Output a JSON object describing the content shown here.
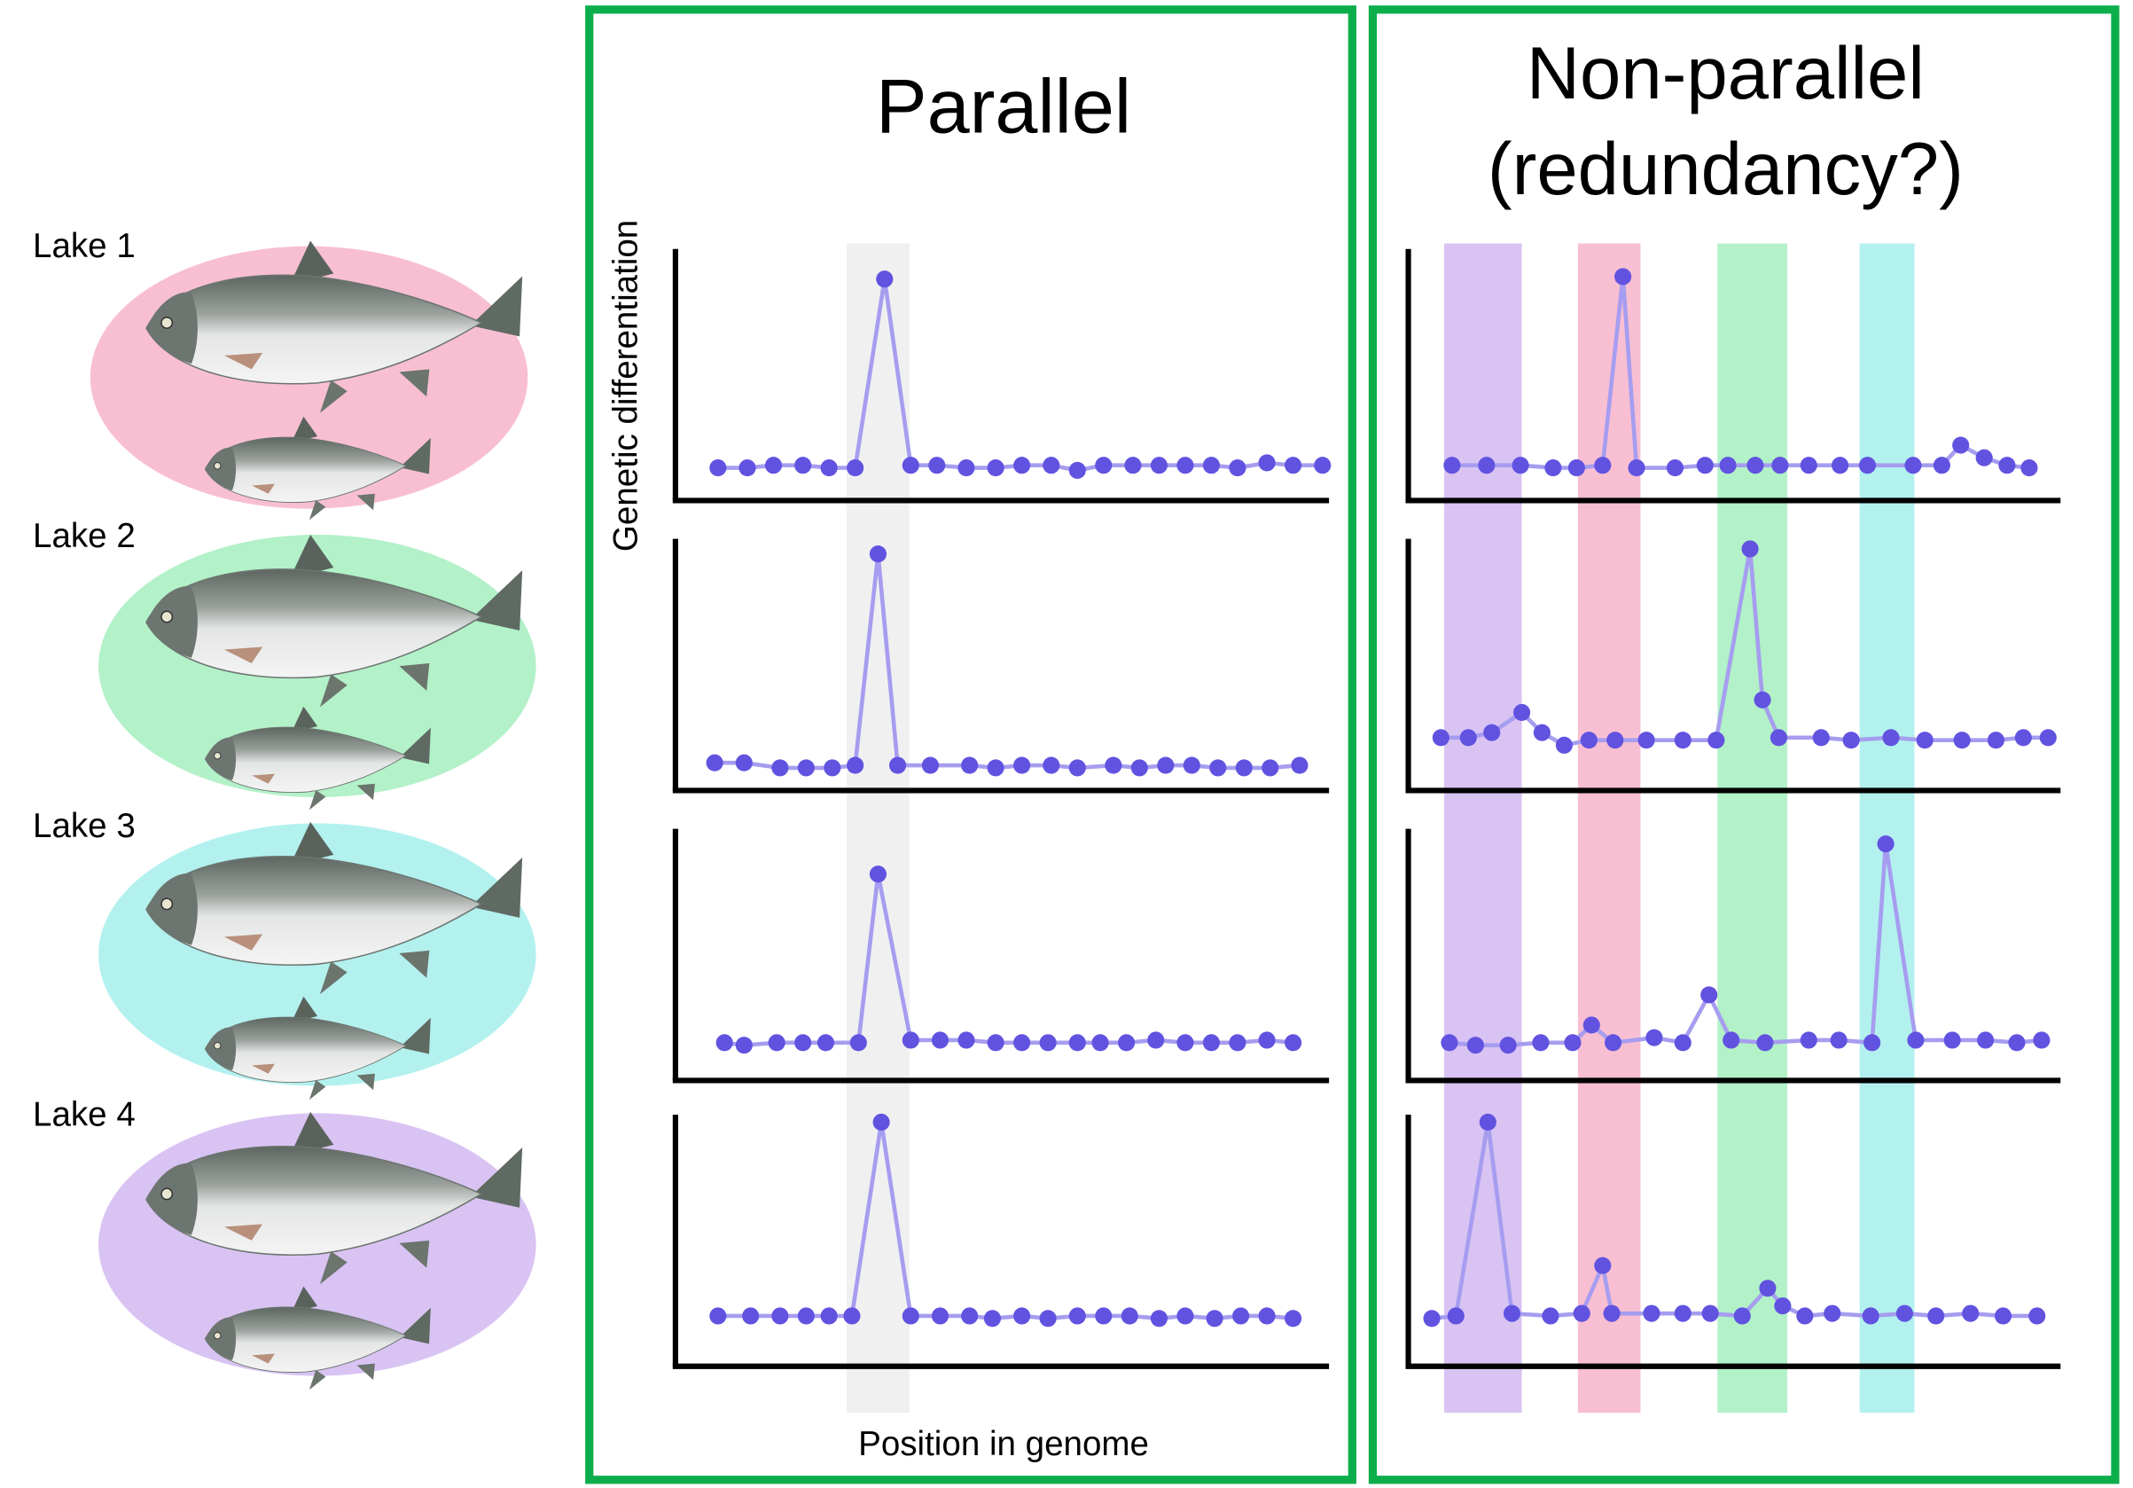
{
  "lakes": [
    {
      "label": "Lake 1",
      "color": "#f8bfd3"
    },
    {
      "label": "Lake 2",
      "color": "#b3f1c9"
    },
    {
      "label": "Lake 3",
      "color": "#b3f1ef"
    },
    {
      "label": "Lake 4",
      "color": "#d9c3f3"
    }
  ],
  "colors": {
    "frame": "#0cae4c",
    "dot": "#6153e0",
    "line": "#a69df0",
    "parallel_band": "#f0f0f0"
  },
  "chart_data": [
    {
      "type": "line",
      "title": "Parallel",
      "ylabel": "Genetic differentiation",
      "xlabel": "Position in genome",
      "xlim": [
        0,
        100
      ],
      "ylim": [
        0,
        1
      ],
      "bands": [
        {
          "range": [
            26.2,
            35.8
          ],
          "color": "#f0f0f0"
        }
      ],
      "series": [
        {
          "name": "Lake 1",
          "points": [
            [
              6.5,
              0.13
            ],
            [
              11,
              0.13
            ],
            [
              15,
              0.14
            ],
            [
              19.5,
              0.14
            ],
            [
              23.5,
              0.13
            ],
            [
              27.5,
              0.13
            ],
            [
              32,
              0.88
            ],
            [
              36,
              0.14
            ],
            [
              40,
              0.14
            ],
            [
              44.5,
              0.13
            ],
            [
              49,
              0.13
            ],
            [
              53,
              0.14
            ],
            [
              57.5,
              0.14
            ],
            [
              61.5,
              0.12
            ],
            [
              65.5,
              0.14
            ],
            [
              70,
              0.14
            ],
            [
              74,
              0.14
            ],
            [
              78,
              0.14
            ],
            [
              82,
              0.14
            ],
            [
              86,
              0.13
            ],
            [
              90.5,
              0.15
            ],
            [
              94.5,
              0.14
            ],
            [
              99,
              0.14
            ]
          ]
        },
        {
          "name": "Lake 2",
          "points": [
            [
              6,
              0.11
            ],
            [
              10.5,
              0.11
            ],
            [
              16,
              0.09
            ],
            [
              20,
              0.09
            ],
            [
              24,
              0.09
            ],
            [
              27.5,
              0.1
            ],
            [
              31,
              0.94
            ],
            [
              34,
              0.1
            ],
            [
              39,
              0.1
            ],
            [
              45,
              0.1
            ],
            [
              49,
              0.09
            ],
            [
              53,
              0.1
            ],
            [
              57.5,
              0.1
            ],
            [
              61.5,
              0.09
            ],
            [
              67,
              0.1
            ],
            [
              71,
              0.09
            ],
            [
              75,
              0.1
            ],
            [
              79,
              0.1
            ],
            [
              83,
              0.09
            ],
            [
              87,
              0.09
            ],
            [
              91,
              0.09
            ],
            [
              95.5,
              0.1
            ]
          ]
        },
        {
          "name": "Lake 3",
          "points": [
            [
              7.5,
              0.15
            ],
            [
              10.5,
              0.14
            ],
            [
              15.5,
              0.15
            ],
            [
              19.5,
              0.15
            ],
            [
              23,
              0.15
            ],
            [
              28,
              0.15
            ],
            [
              31,
              0.82
            ],
            [
              36,
              0.16
            ],
            [
              40.5,
              0.16
            ],
            [
              44.5,
              0.16
            ],
            [
              49,
              0.15
            ],
            [
              53,
              0.15
            ],
            [
              57,
              0.15
            ],
            [
              61.5,
              0.15
            ],
            [
              65,
              0.15
            ],
            [
              69,
              0.15
            ],
            [
              73.5,
              0.16
            ],
            [
              78,
              0.15
            ],
            [
              82,
              0.15
            ],
            [
              86,
              0.15
            ],
            [
              90.5,
              0.16
            ],
            [
              94.5,
              0.15
            ]
          ]
        },
        {
          "name": "Lake 4",
          "points": [
            [
              6.5,
              0.2
            ],
            [
              11.5,
              0.2
            ],
            [
              16,
              0.2
            ],
            [
              20,
              0.2
            ],
            [
              23.5,
              0.2
            ],
            [
              27,
              0.2
            ],
            [
              31.5,
              0.97
            ],
            [
              36,
              0.2
            ],
            [
              40.5,
              0.2
            ],
            [
              45,
              0.2
            ],
            [
              48.5,
              0.19
            ],
            [
              53,
              0.2
            ],
            [
              57,
              0.19
            ],
            [
              61.5,
              0.2
            ],
            [
              65.5,
              0.2
            ],
            [
              69.5,
              0.2
            ],
            [
              74,
              0.19
            ],
            [
              78,
              0.2
            ],
            [
              82.5,
              0.19
            ],
            [
              86.5,
              0.2
            ],
            [
              90.5,
              0.2
            ],
            [
              94.5,
              0.19
            ]
          ]
        }
      ]
    },
    {
      "type": "line",
      "title": "Non-parallel",
      "subtitle": "(redundancy?)",
      "xlim": [
        0,
        100
      ],
      "ylim": [
        0,
        1
      ],
      "bands": [
        {
          "range": [
            5.5,
            17.4
          ],
          "color": "#d9c3f3"
        },
        {
          "range": [
            26.0,
            35.6
          ],
          "color": "#f8bfd3"
        },
        {
          "range": [
            47.4,
            58.1
          ],
          "color": "#b3f1c9"
        },
        {
          "range": [
            69.2,
            77.6
          ],
          "color": "#b3f1ef"
        }
      ],
      "series": [
        {
          "name": "Lake 1",
          "points": [
            [
              6.7,
              0.14
            ],
            [
              12,
              0.14
            ],
            [
              17.2,
              0.14
            ],
            [
              22.2,
              0.13
            ],
            [
              25.8,
              0.13
            ],
            [
              29.8,
              0.14
            ],
            [
              32.9,
              0.89
            ],
            [
              35,
              0.13
            ],
            [
              40.9,
              0.13
            ],
            [
              45.5,
              0.14
            ],
            [
              49,
              0.14
            ],
            [
              53.2,
              0.14
            ],
            [
              57,
              0.14
            ],
            [
              61.4,
              0.14
            ],
            [
              66.2,
              0.14
            ],
            [
              70.4,
              0.14
            ],
            [
              77.4,
              0.14
            ],
            [
              81.8,
              0.14
            ],
            [
              84.7,
              0.22
            ],
            [
              88.3,
              0.17
            ],
            [
              91.8,
              0.14
            ],
            [
              95.2,
              0.13
            ]
          ]
        },
        {
          "name": "Lake 2",
          "points": [
            [
              5,
              0.21
            ],
            [
              9.2,
              0.21
            ],
            [
              12.8,
              0.23
            ],
            [
              17.4,
              0.31
            ],
            [
              20.5,
              0.23
            ],
            [
              23.9,
              0.18
            ],
            [
              27.7,
              0.2
            ],
            [
              31.7,
              0.2
            ],
            [
              36.5,
              0.2
            ],
            [
              42.1,
              0.2
            ],
            [
              47.2,
              0.2
            ],
            [
              52.4,
              0.96
            ],
            [
              54.3,
              0.36
            ],
            [
              56.8,
              0.21
            ],
            [
              63.3,
              0.21
            ],
            [
              67.9,
              0.2
            ],
            [
              74,
              0.21
            ],
            [
              79.2,
              0.2
            ],
            [
              84.9,
              0.2
            ],
            [
              90.1,
              0.2
            ],
            [
              94.3,
              0.21
            ],
            [
              98.1,
              0.21
            ]
          ]
        },
        {
          "name": "Lake 3",
          "points": [
            [
              6.3,
              0.15
            ],
            [
              10.3,
              0.14
            ],
            [
              15.3,
              0.14
            ],
            [
              20.3,
              0.15
            ],
            [
              25.2,
              0.15
            ],
            [
              28.1,
              0.22
            ],
            [
              31.4,
              0.15
            ],
            [
              37.7,
              0.17
            ],
            [
              42.1,
              0.15
            ],
            [
              46.1,
              0.34
            ],
            [
              49.5,
              0.16
            ],
            [
              54.7,
              0.15
            ],
            [
              61.4,
              0.16
            ],
            [
              66,
              0.16
            ],
            [
              71.1,
              0.15
            ],
            [
              73.2,
              0.94
            ],
            [
              77.8,
              0.16
            ],
            [
              83.4,
              0.16
            ],
            [
              88.5,
              0.16
            ],
            [
              93.3,
              0.15
            ],
            [
              97.1,
              0.16
            ]
          ]
        },
        {
          "name": "Lake 4",
          "points": [
            [
              3.6,
              0.19
            ],
            [
              7.3,
              0.2
            ],
            [
              12.2,
              0.97
            ],
            [
              15.9,
              0.21
            ],
            [
              21.8,
              0.2
            ],
            [
              26.6,
              0.21
            ],
            [
              29.8,
              0.4
            ],
            [
              31.2,
              0.21
            ],
            [
              37.3,
              0.21
            ],
            [
              42.1,
              0.21
            ],
            [
              46.3,
              0.21
            ],
            [
              51.2,
              0.2
            ],
            [
              55.1,
              0.31
            ],
            [
              57.4,
              0.24
            ],
            [
              60.8,
              0.2
            ],
            [
              65,
              0.21
            ],
            [
              70.9,
              0.2
            ],
            [
              76.1,
              0.21
            ],
            [
              80.9,
              0.2
            ],
            [
              86.2,
              0.21
            ],
            [
              91.2,
              0.2
            ],
            [
              96.4,
              0.2
            ]
          ]
        }
      ]
    }
  ]
}
